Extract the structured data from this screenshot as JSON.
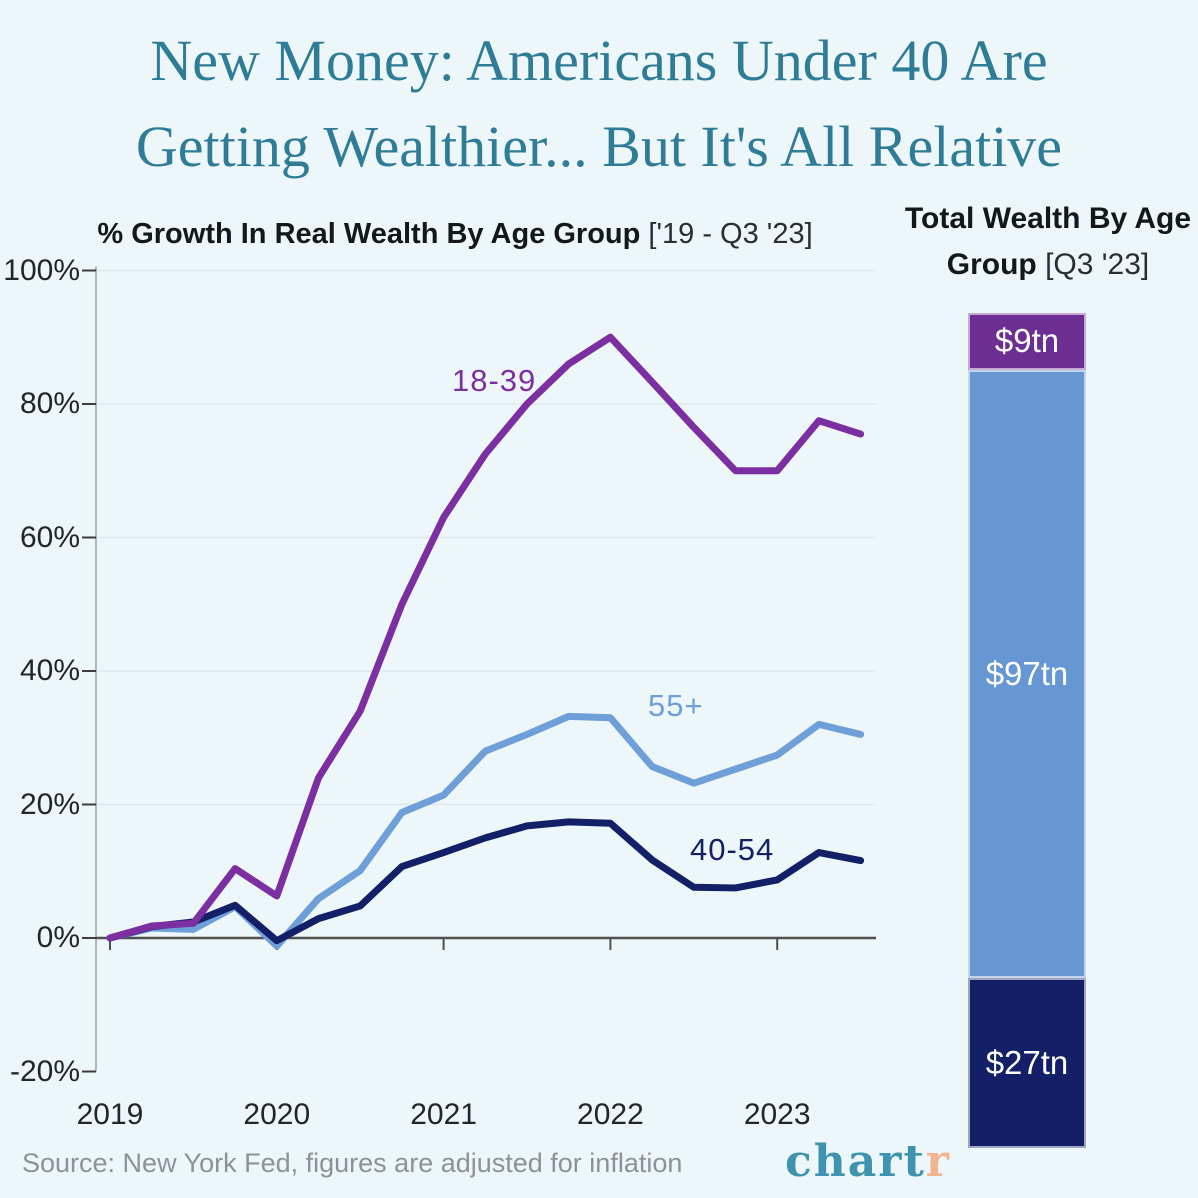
{
  "title": {
    "line1": "New Money: Americans Under 40 Are",
    "line2": "Getting Wealthier... But It's All Relative"
  },
  "chart_data": [
    {
      "type": "line",
      "title_bold": "% Growth In Real Wealth By Age Group",
      "title_bracket": " ['19 - Q3 '23]",
      "xlabel": "",
      "ylabel": "% growth in real wealth",
      "ylim": [
        -20,
        100
      ],
      "grid": "horizontal",
      "x": [
        "2019 Q1",
        "2019 Q2",
        "2019 Q3",
        "2019 Q4",
        "2020 Q1",
        "2020 Q2",
        "2020 Q3",
        "2020 Q4",
        "2021 Q1",
        "2021 Q2",
        "2021 Q3",
        "2021 Q4",
        "2022 Q1",
        "2022 Q2",
        "2022 Q3",
        "2022 Q4",
        "2023 Q1",
        "2023 Q2",
        "2023 Q3"
      ],
      "y_ticks": [
        {
          "label": "100%",
          "value": 100
        },
        {
          "label": "80%",
          "value": 80
        },
        {
          "label": "60%",
          "value": 60
        },
        {
          "label": "40%",
          "value": 40
        },
        {
          "label": "20%",
          "value": 20
        },
        {
          "label": "0%",
          "value": 0
        },
        {
          "label": "-20%",
          "value": -20
        }
      ],
      "x_ticks": [
        {
          "label": "2019",
          "quarter_index": 0
        },
        {
          "label": "2020",
          "quarter_index": 4
        },
        {
          "label": "2021",
          "quarter_index": 8
        },
        {
          "label": "2022",
          "quarter_index": 12
        },
        {
          "label": "2023",
          "quarter_index": 16
        }
      ],
      "series": [
        {
          "name": "55+",
          "color": "#6E9FD9",
          "values": [
            0,
            1.5,
            1.3,
            4.7,
            -1.2,
            5.9,
            10.1,
            18.8,
            21.4,
            28,
            30.5,
            33.2,
            33,
            25.7,
            23.2,
            25.3,
            27.4,
            32,
            30.5
          ]
        },
        {
          "name": "40-54",
          "color": "#131F66",
          "values": [
            0,
            1.7,
            2.4,
            4.9,
            -0.4,
            2.9,
            4.8,
            10.7,
            12.8,
            15,
            16.8,
            17.4,
            17.2,
            11.7,
            7.6,
            7.5,
            8.7,
            12.8,
            11.6
          ]
        },
        {
          "name": "18-39",
          "color": "#7B2FA0",
          "values": [
            0,
            1.8,
            2.2,
            10.4,
            6.3,
            24,
            34,
            50,
            63,
            72.5,
            80,
            86,
            90,
            83.3,
            76.5,
            70,
            70,
            77.5,
            75.5
          ]
        }
      ]
    },
    {
      "type": "bar",
      "title_bold": "Total Wealth By Age Group",
      "title_bracket": " [Q3 '23]",
      "stacked": true,
      "unit": "$ trillion",
      "segments": [
        {
          "label": "$9tn",
          "group": "18-39",
          "value": 9,
          "color": "#6C2E93"
        },
        {
          "label": "$97tn",
          "group": "55+",
          "value": 97,
          "color": "#6697D3"
        },
        {
          "label": "$27tn",
          "group": "40-54",
          "value": 27,
          "color": "#132068"
        }
      ]
    }
  ],
  "footer": {
    "source": "Source: New York Fed, figures are adjusted for inflation",
    "logo_main": "chart",
    "logo_accent": "r"
  }
}
